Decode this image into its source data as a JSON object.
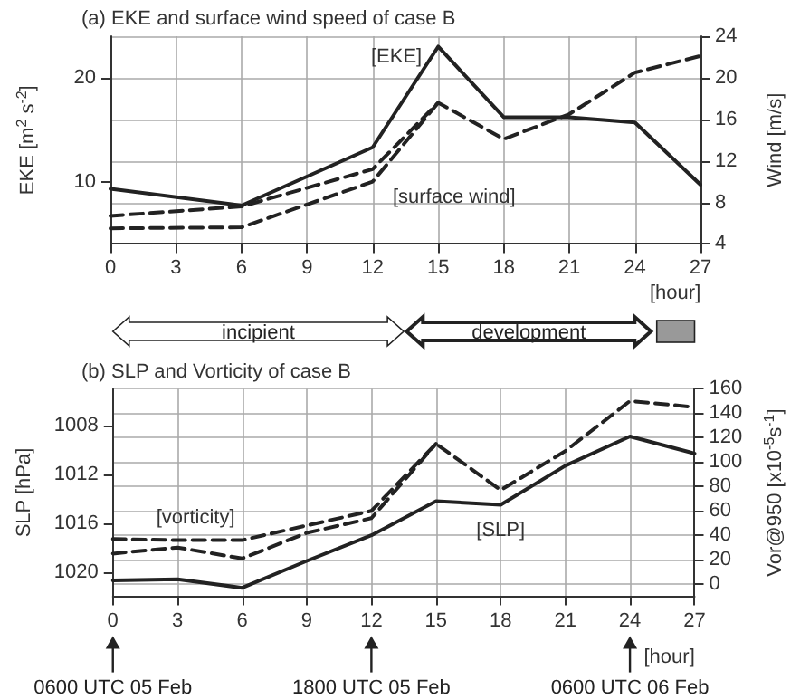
{
  "chart_data": [
    {
      "type": "line",
      "title": "(a) EKE and surface wind speed of case B",
      "xlabel": "[hour]",
      "ylabel": "EKE [m$^{2}$ s$^{-2}$]",
      "y2label": "Wind [m/s]",
      "xlim": [
        0,
        27
      ],
      "xticks": [
        0,
        3,
        6,
        9,
        12,
        15,
        18,
        21,
        24,
        27
      ],
      "ylim": [
        4,
        24
      ],
      "yticks": [
        10,
        20
      ],
      "y2lim": [
        4,
        24
      ],
      "y2ticks": [
        4,
        8,
        12,
        16,
        20,
        24
      ],
      "grid": true,
      "legend": false,
      "marker": "none",
      "series": [
        {
          "name": "[EKE]",
          "color": "#222222",
          "line_style": "solid",
          "x": [
            0,
            6,
            12,
            15,
            18,
            21,
            24,
            27
          ],
          "values": [
            9.3,
            7.7,
            13.3,
            23.0,
            16.2,
            16.2,
            15.7,
            9.7
          ]
        },
        {
          "color": "#222222",
          "line_style": "dashed",
          "axis": "y2",
          "x": [
            0,
            6,
            12,
            15,
            18,
            21,
            24,
            27
          ],
          "values": [
            6.7,
            7.6,
            11.2,
            17.6,
            14.1,
            16.5,
            20.5,
            22.1
          ]
        },
        {
          "name": "[surface wind]",
          "color": "#222222",
          "line_style": "dashed",
          "axis": "y2",
          "x": [
            0,
            6,
            12,
            15
          ],
          "values": [
            5.5,
            5.6,
            10.0,
            17.6
          ]
        }
      ]
    },
    {
      "type": "line",
      "title": "(b) SLP and Vorticity of case B",
      "xlabel": "[hour]",
      "ylabel": "SLP [hPa]",
      "y2label": "Vor@950 [x10$^{-5}$s$^{-1}$]",
      "xlim": [
        0,
        27
      ],
      "xticks": [
        0,
        3,
        6,
        9,
        12,
        15,
        18,
        21,
        24,
        27
      ],
      "ylim": [
        1022,
        1005
      ],
      "yticks": [
        1008,
        1012,
        1016,
        1020
      ],
      "y2lim": [
        -10,
        160
      ],
      "y2ticks": [
        0,
        20,
        40,
        60,
        80,
        100,
        120,
        140,
        160
      ],
      "grid": true,
      "legend": false,
      "marker": "none",
      "annotations": [
        "0600 UTC 05 Feb",
        "1800 UTC 05 Feb",
        "0600 UTC 06 Feb",
        "incipient",
        "development"
      ],
      "series": [
        {
          "name": "[SLP]",
          "color": "#222222",
          "line_style": "solid",
          "x": [
            0,
            3,
            6,
            9,
            12,
            15,
            18,
            21,
            24,
            27
          ],
          "values": [
            1020.7,
            1020.6,
            1021.3,
            1019.1,
            1017.0,
            1014.2,
            1014.5,
            1011.3,
            1008.9,
            1010.3
          ]
        },
        {
          "name": "[vorticity]",
          "color": "#222222",
          "line_style": "dashed",
          "axis": "y2",
          "x": [
            0,
            3,
            6,
            12,
            15,
            18,
            21,
            24,
            27
          ],
          "values": [
            37,
            36,
            36,
            60,
            115,
            77,
            109,
            150,
            145
          ]
        },
        {
          "color": "#222222",
          "line_style": "dashed",
          "axis": "y2",
          "x": [
            0,
            3,
            6,
            9,
            12,
            15
          ],
          "values": [
            25,
            30,
            21,
            42,
            54,
            115
          ]
        }
      ]
    }
  ]
}
